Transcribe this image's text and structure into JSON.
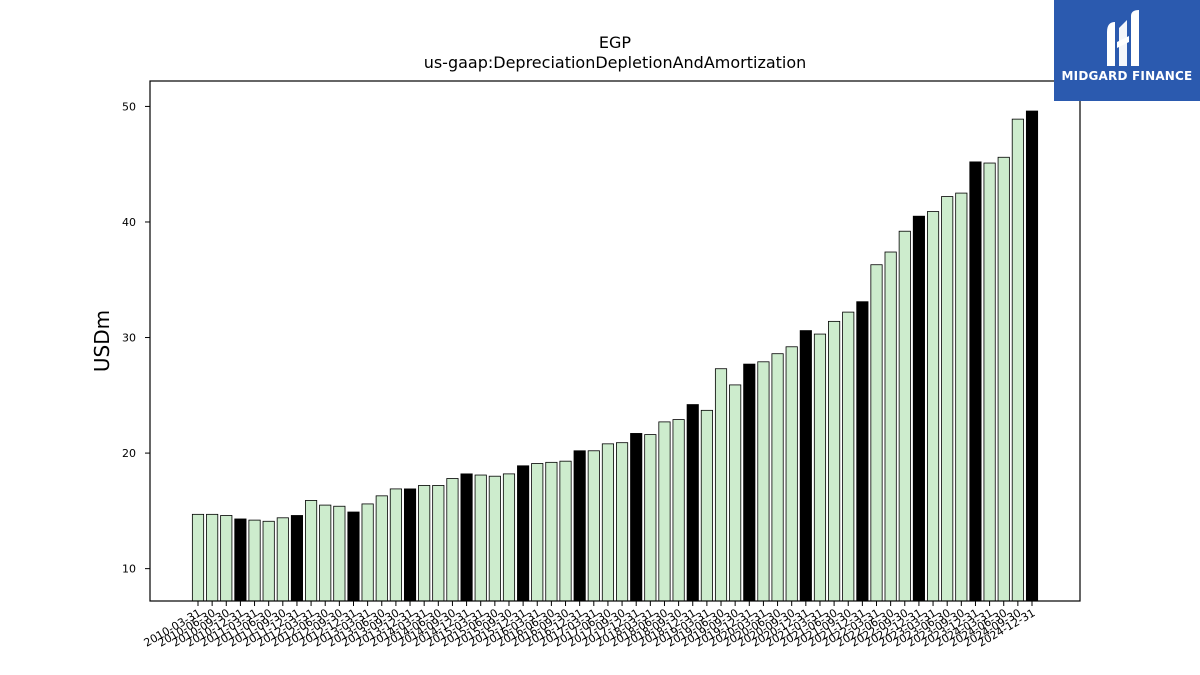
{
  "chart_data": {
    "type": "bar",
    "title": "EGP",
    "subtitle": "us-gaap:DepreciationDepletionAndAmortization",
    "xlabel": "",
    "ylabel": "USDm",
    "ylim": [
      7.2,
      52.2
    ],
    "yticks": [
      10,
      20,
      30,
      40,
      50
    ],
    "grid": false,
    "colors": {
      "light": "#cdeccd",
      "dark": "#000000",
      "edge": "#000000"
    },
    "highlight_note": "Q4 (12-31) bars are black",
    "categories": [
      "2010-03-31",
      "2010-06-30",
      "2010-09-30",
      "2010-12-31",
      "2011-03-31",
      "2011-06-30",
      "2011-09-30",
      "2011-12-31",
      "2012-03-31",
      "2012-06-30",
      "2012-09-30",
      "2012-12-31",
      "2013-03-31",
      "2013-06-30",
      "2013-09-30",
      "2013-12-31",
      "2014-03-31",
      "2014-06-30",
      "2014-09-30",
      "2014-12-31",
      "2015-03-31",
      "2015-06-30",
      "2015-09-30",
      "2015-12-31",
      "2016-03-31",
      "2016-06-30",
      "2016-09-30",
      "2016-12-31",
      "2017-03-31",
      "2017-06-30",
      "2017-09-30",
      "2017-12-31",
      "2018-03-31",
      "2018-06-30",
      "2018-09-30",
      "2018-12-31",
      "2019-03-31",
      "2019-06-30",
      "2019-09-30",
      "2019-12-31",
      "2020-03-31",
      "2020-06-30",
      "2020-09-30",
      "2020-12-31",
      "2021-03-31",
      "2021-06-30",
      "2021-09-30",
      "2021-12-31",
      "2022-03-31",
      "2022-06-30",
      "2022-09-30",
      "2022-12-31",
      "2023-03-31",
      "2023-06-30",
      "2023-09-30",
      "2023-12-31",
      "2024-03-31",
      "2024-06-30",
      "2024-09-30",
      "2024-12-31"
    ],
    "values": [
      14.7,
      14.7,
      14.6,
      14.3,
      14.2,
      14.1,
      14.4,
      14.6,
      15.9,
      15.5,
      15.4,
      14.9,
      15.6,
      16.3,
      16.9,
      16.9,
      17.2,
      17.2,
      17.8,
      18.2,
      18.1,
      18.0,
      18.2,
      18.9,
      19.1,
      19.2,
      19.3,
      20.2,
      20.2,
      20.8,
      20.9,
      21.7,
      21.6,
      22.7,
      22.9,
      24.2,
      23.7,
      27.3,
      25.9,
      27.7,
      27.9,
      28.6,
      29.2,
      30.6,
      30.3,
      31.4,
      32.2,
      33.1,
      36.3,
      37.4,
      39.2,
      40.5,
      40.9,
      42.2,
      42.5,
      45.2,
      45.1,
      45.6,
      48.9,
      49.6
    ],
    "highlight": [
      false,
      false,
      false,
      true,
      false,
      false,
      false,
      true,
      false,
      false,
      false,
      true,
      false,
      false,
      false,
      true,
      false,
      false,
      false,
      true,
      false,
      false,
      false,
      true,
      false,
      false,
      false,
      true,
      false,
      false,
      false,
      true,
      false,
      false,
      false,
      true,
      false,
      false,
      false,
      true,
      false,
      false,
      false,
      true,
      false,
      false,
      false,
      true,
      false,
      false,
      false,
      true,
      false,
      false,
      false,
      true,
      false,
      false,
      false,
      true
    ]
  },
  "logo": {
    "text": "MIDGARD FINANCE",
    "color": "#2b5aaf"
  }
}
